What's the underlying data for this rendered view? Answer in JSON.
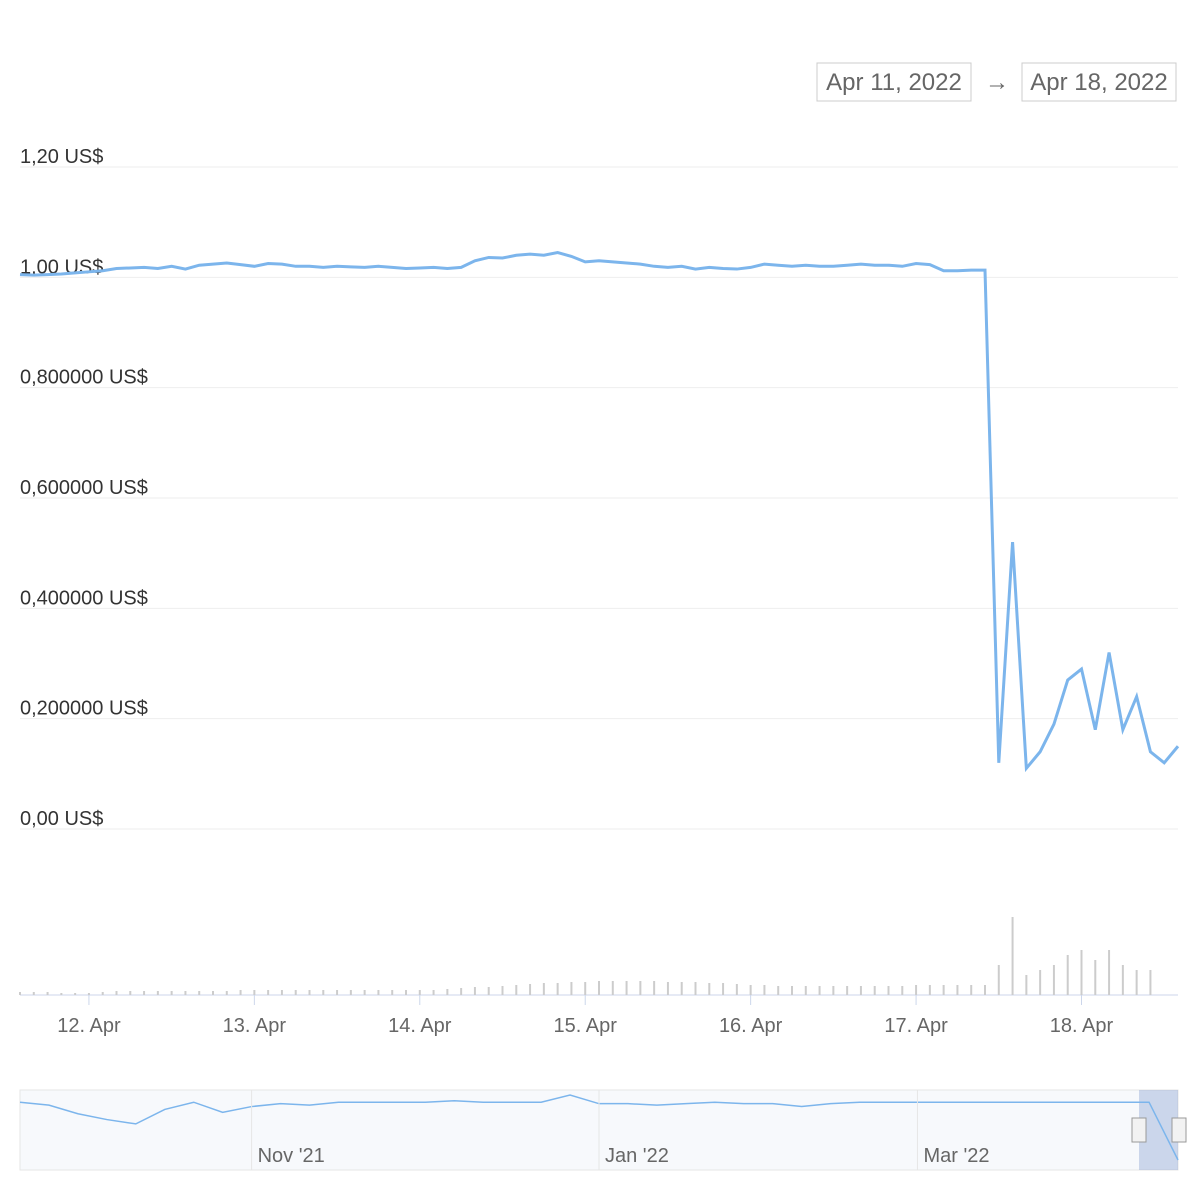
{
  "chart_data": {
    "type": "line",
    "range_from": "Apr 11, 2022",
    "range_arrow": "→",
    "range_to": "Apr 18, 2022",
    "ylim": [
      0,
      1.2
    ],
    "yticks": [
      {
        "value": 0,
        "label": "0,00 US$"
      },
      {
        "value": 0.2,
        "label": "0,200000 US$"
      },
      {
        "value": 0.4,
        "label": "0,400000 US$"
      },
      {
        "value": 0.6,
        "label": "0,600000 US$"
      },
      {
        "value": 0.8,
        "label": "0,800000 US$"
      },
      {
        "value": 1.0,
        "label": "1,00 US$"
      },
      {
        "value": 1.2,
        "label": "1,20 US$"
      }
    ],
    "grid": true,
    "color": "#7cb5ec",
    "categories": [
      null,
      null,
      null,
      null,
      null,
      "12. Apr",
      null,
      null,
      null,
      null,
      null,
      null,
      null,
      null,
      null,
      null,
      null,
      "13. Apr",
      null,
      null,
      null,
      null,
      null,
      null,
      null,
      null,
      null,
      null,
      null,
      "14. Apr",
      null,
      null,
      null,
      null,
      null,
      null,
      null,
      null,
      null,
      null,
      null,
      "15. Apr",
      null,
      null,
      null,
      null,
      null,
      null,
      null,
      null,
      null,
      null,
      null,
      "16. Apr",
      null,
      null,
      null,
      null,
      null,
      null,
      null,
      null,
      null,
      null,
      null,
      "17. Apr",
      null,
      null,
      null,
      null,
      null,
      null,
      null,
      null,
      null,
      null,
      null,
      "18. Apr",
      null,
      null,
      null,
      null,
      null,
      null,
      null
    ],
    "values": [
      1.005,
      1.004,
      1.005,
      1.006,
      1.008,
      1.01,
      1.012,
      1.016,
      1.017,
      1.018,
      1.016,
      1.02,
      1.015,
      1.022,
      1.024,
      1.026,
      1.023,
      1.02,
      1.025,
      1.024,
      1.02,
      1.02,
      1.018,
      1.02,
      1.019,
      1.018,
      1.02,
      1.018,
      1.016,
      1.017,
      1.018,
      1.016,
      1.018,
      1.03,
      1.036,
      1.035,
      1.04,
      1.042,
      1.04,
      1.045,
      1.038,
      1.028,
      1.03,
      1.028,
      1.026,
      1.024,
      1.02,
      1.018,
      1.02,
      1.015,
      1.018,
      1.016,
      1.015,
      1.018,
      1.024,
      1.022,
      1.02,
      1.022,
      1.02,
      1.02,
      1.022,
      1.024,
      1.022,
      1.022,
      1.02,
      1.025,
      1.023,
      1.012,
      1.012,
      1.013,
      1.013,
      0.12,
      0.52,
      0.11,
      0.14,
      0.19,
      0.27,
      0.29,
      0.18,
      0.32,
      0.18,
      0.24,
      0.14,
      0.12,
      0.15
    ],
    "volume": [
      3,
      3,
      3,
      2,
      2,
      2,
      3,
      4,
      4,
      4,
      4,
      4,
      4,
      4,
      4,
      4,
      5,
      5,
      5,
      5,
      5,
      5,
      5,
      5,
      5,
      5,
      5,
      5,
      5,
      5,
      5,
      6,
      7,
      8,
      8,
      9,
      10,
      11,
      12,
      12,
      13,
      13,
      14,
      14,
      14,
      14,
      14,
      13,
      13,
      13,
      12,
      12,
      11,
      10,
      10,
      9,
      9,
      9,
      9,
      9,
      9,
      9,
      9,
      9,
      9,
      10,
      10,
      10,
      10,
      10,
      10,
      30,
      78,
      20,
      25,
      30,
      40,
      45,
      35,
      45,
      30,
      25,
      25,
      0,
      0
    ],
    "volume_color": "#cccccc",
    "navigator": {
      "categories": [
        null,
        null,
        null,
        null,
        null,
        null,
        null,
        null,
        "Nov '21",
        null,
        null,
        null,
        null,
        null,
        null,
        null,
        null,
        null,
        null,
        null,
        "Jan '22",
        null,
        null,
        null,
        null,
        null,
        null,
        null,
        null,
        null,
        null,
        "Mar '22",
        null,
        null,
        null,
        null,
        null,
        null,
        null,
        null,
        null
      ],
      "values": [
        1.0,
        0.98,
        0.92,
        0.88,
        0.85,
        0.95,
        1.0,
        0.93,
        0.97,
        0.99,
        0.98,
        1.0,
        1.0,
        1.0,
        1.0,
        1.01,
        1.0,
        1.0,
        1.0,
        1.05,
        0.99,
        0.99,
        0.98,
        0.99,
        1.0,
        0.99,
        0.99,
        0.97,
        0.99,
        1.0,
        1.0,
        1.0,
        1.0,
        1.0,
        1.0,
        1.0,
        1.0,
        1.0,
        1.0,
        1.0,
        0.6
      ]
    }
  }
}
